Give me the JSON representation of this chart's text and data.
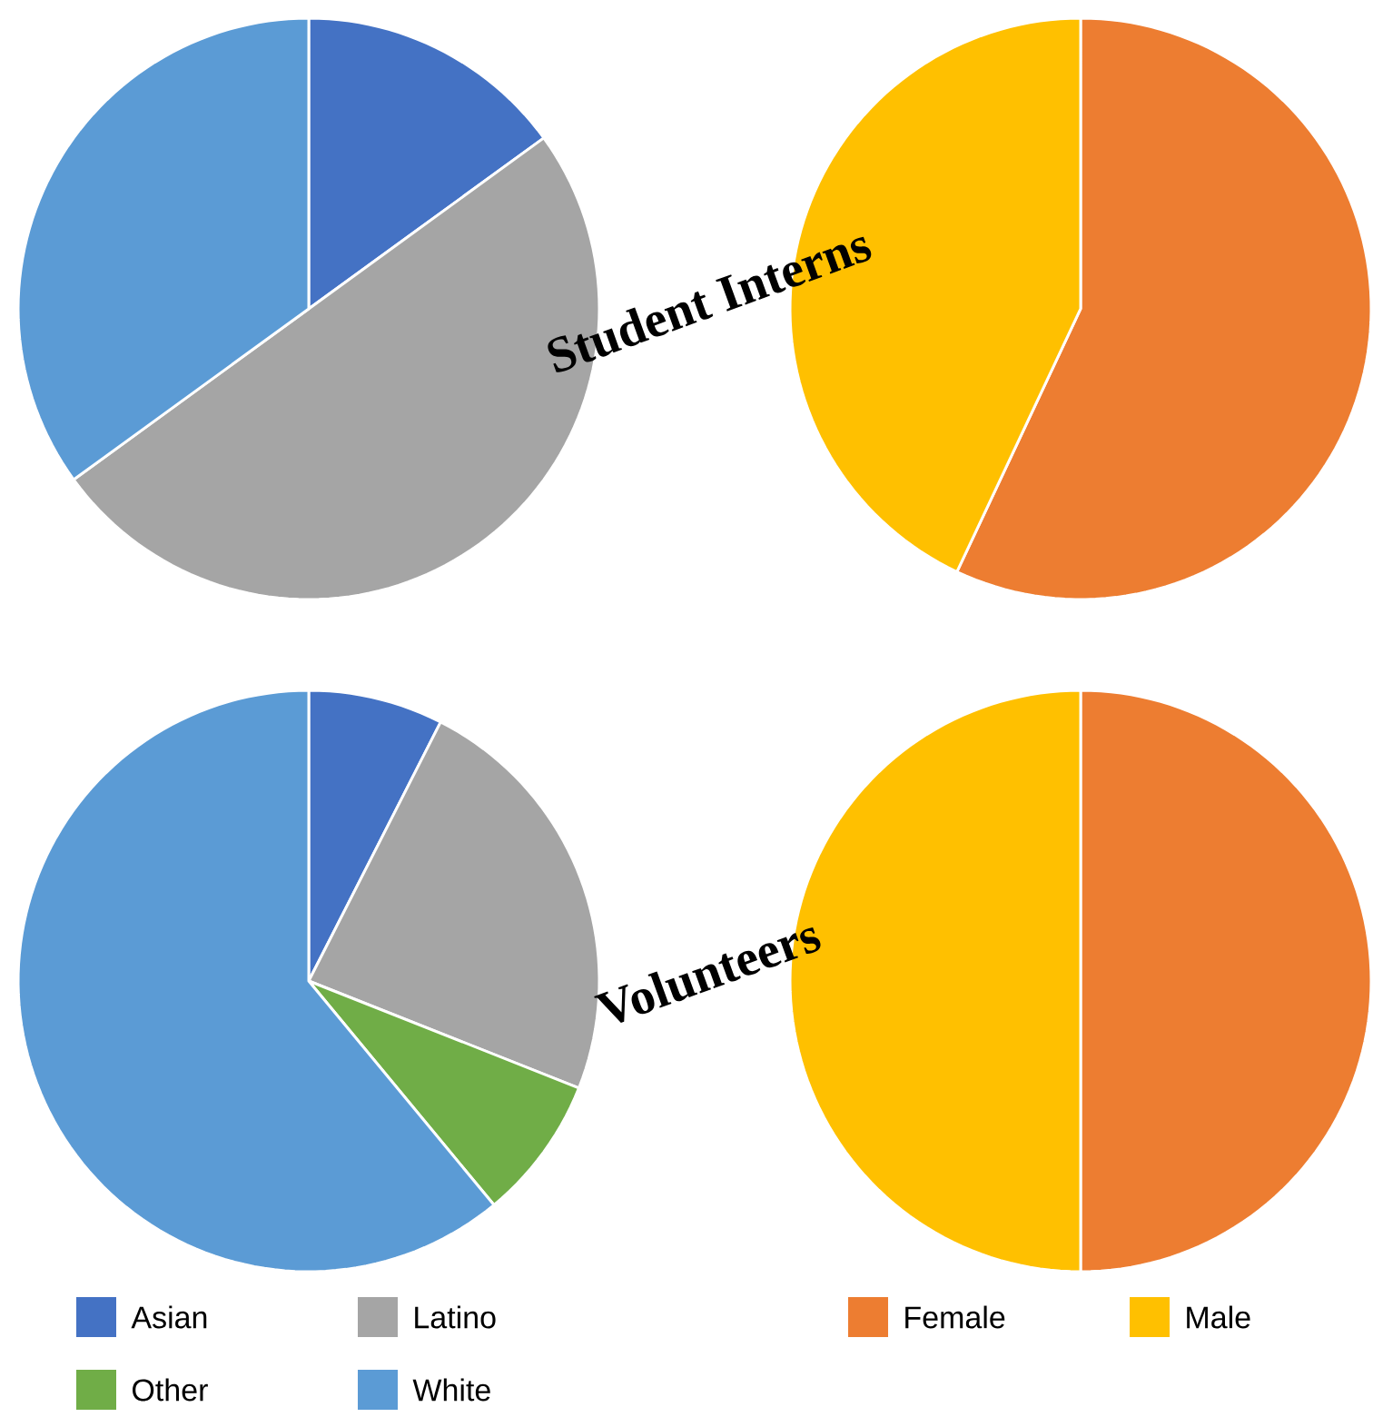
{
  "chart_data": [
    {
      "type": "pie",
      "title": "Student Interns",
      "categories": [
        null,
        null,
        null,
        null
      ],
      "values": [
        15,
        50,
        0,
        35
      ],
      "colors": [
        "#4472c4",
        "#a5a5a5",
        "#70ad47",
        "#5b9bd5"
      ]
    },
    {
      "type": "pie",
      "categories": [
        null,
        null
      ],
      "values": [
        57,
        43
      ],
      "colors": [
        "#ed7d31",
        "#ffc000"
      ]
    },
    {
      "type": "pie",
      "title": "Volunteers",
      "categories": [
        "Asian",
        "Latino",
        "Other",
        "White"
      ],
      "values": [
        7.5,
        23.5,
        8,
        61
      ],
      "colors": [
        "#4472c4",
        "#a5a5a5",
        "#70ad47",
        "#5b9bd5"
      ],
      "legend": "bottom"
    },
    {
      "type": "pie",
      "categories": [
        "Female",
        "Male"
      ],
      "values": [
        50,
        50
      ],
      "colors": [
        "#ed7d31",
        "#ffc000"
      ],
      "legend": "bottom"
    }
  ]
}
